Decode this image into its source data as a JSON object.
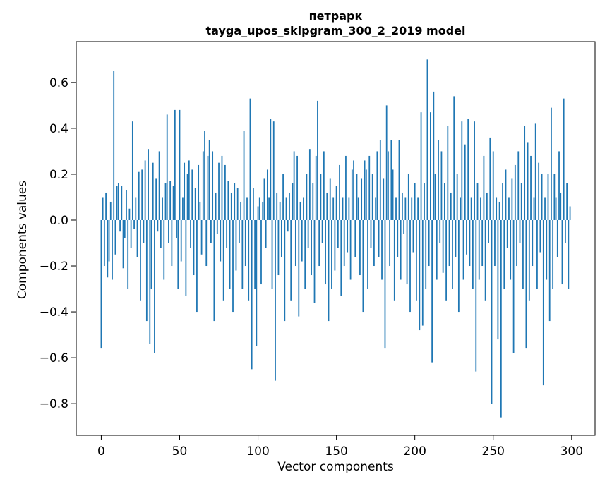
{
  "figure": {
    "title": "петрарк",
    "subtitle": "tayga_upos_skipgram_300_2_2019 model"
  },
  "chart_data": {
    "type": "bar",
    "title": "петрарк",
    "subtitle": "tayga_upos_skipgram_300_2_2019 model",
    "xlabel": "Vector components",
    "ylabel": "Components values",
    "legend": "none",
    "grid": false,
    "xlim": [
      -15.95,
      314.95
    ],
    "ylim": [
      -0.938,
      0.778
    ],
    "xticks": [
      0,
      50,
      100,
      150,
      200,
      250,
      300
    ],
    "yticks": [
      -0.8,
      -0.6,
      -0.4,
      -0.2,
      0.0,
      0.2,
      0.4,
      0.6
    ],
    "bar_color": "#1f77b4",
    "bar_width_data_units": 0.8,
    "x_start": 0,
    "values": [
      -0.56,
      0.1,
      -0.2,
      0.12,
      -0.25,
      -0.18,
      0.08,
      -0.26,
      0.65,
      -0.15,
      0.15,
      0.16,
      -0.05,
      0.15,
      -0.21,
      -0.08,
      0.13,
      -0.3,
      0.05,
      -0.12,
      0.43,
      -0.04,
      0.1,
      -0.16,
      0.21,
      -0.35,
      0.22,
      -0.1,
      0.26,
      -0.44,
      0.31,
      -0.54,
      -0.3,
      0.25,
      -0.58,
      0.18,
      -0.05,
      0.3,
      -0.12,
      0.1,
      -0.26,
      0.16,
      0.46,
      -0.1,
      0.17,
      -0.2,
      0.15,
      0.48,
      -0.08,
      -0.3,
      0.48,
      -0.18,
      0.1,
      0.25,
      -0.33,
      0.2,
      0.26,
      -0.12,
      0.22,
      -0.24,
      0.14,
      -0.4,
      0.24,
      0.08,
      -0.15,
      0.3,
      0.39,
      -0.2,
      0.28,
      0.35,
      -0.1,
      0.3,
      -0.44,
      0.12,
      -0.06,
      0.25,
      -0.18,
      0.28,
      -0.35,
      0.24,
      -0.12,
      0.17,
      -0.3,
      0.12,
      -0.4,
      0.16,
      -0.22,
      0.14,
      -0.1,
      0.08,
      -0.3,
      0.39,
      -0.2,
      0.1,
      -0.35,
      0.53,
      -0.65,
      0.14,
      -0.3,
      -0.55,
      0.06,
      0.1,
      -0.28,
      0.08,
      0.18,
      -0.12,
      0.22,
      0.1,
      0.44,
      -0.3,
      0.43,
      -0.7,
      0.12,
      -0.24,
      0.08,
      -0.16,
      0.2,
      -0.44,
      0.1,
      -0.05,
      0.12,
      -0.35,
      0.16,
      0.3,
      -0.2,
      0.28,
      -0.42,
      0.08,
      -0.18,
      0.1,
      -0.3,
      0.2,
      -0.12,
      0.31,
      -0.24,
      0.16,
      -0.36,
      0.28,
      0.52,
      -0.2,
      0.2,
      -0.1,
      0.3,
      -0.28,
      0.12,
      -0.44,
      0.18,
      -0.3,
      0.1,
      -0.22,
      0.15,
      -0.12,
      0.24,
      -0.33,
      0.1,
      -0.2,
      0.28,
      -0.14,
      0.1,
      -0.26,
      0.22,
      0.26,
      -0.16,
      0.2,
      0.1,
      -0.24,
      0.18,
      -0.4,
      0.26,
      0.22,
      -0.3,
      0.28,
      -0.12,
      0.2,
      -0.2,
      0.1,
      0.3,
      -0.16,
      0.35,
      -0.26,
      0.18,
      -0.56,
      0.5,
      0.3,
      -0.2,
      0.35,
      0.22,
      -0.35,
      0.1,
      -0.16,
      0.35,
      -0.26,
      0.12,
      -0.06,
      0.1,
      -0.28,
      0.2,
      -0.4,
      0.1,
      -0.14,
      0.16,
      -0.35,
      0.1,
      -0.48,
      0.47,
      -0.46,
      0.16,
      -0.3,
      0.7,
      -0.2,
      0.47,
      -0.62,
      0.56,
      0.2,
      -0.26,
      0.35,
      -0.1,
      0.3,
      -0.23,
      0.16,
      -0.35,
      0.41,
      -0.2,
      0.12,
      -0.3,
      0.54,
      -0.16,
      0.2,
      -0.4,
      0.1,
      0.43,
      -0.26,
      0.33,
      -0.15,
      0.44,
      -0.2,
      0.1,
      -0.3,
      0.43,
      -0.66,
      0.16,
      -0.26,
      0.1,
      -0.2,
      0.28,
      -0.35,
      0.12,
      -0.1,
      0.36,
      -0.8,
      0.3,
      -0.2,
      0.1,
      -0.52,
      0.08,
      -0.86,
      0.16,
      -0.3,
      0.22,
      -0.12,
      0.1,
      -0.26,
      0.18,
      -0.58,
      0.24,
      -0.2,
      0.3,
      -0.1,
      0.16,
      -0.3,
      0.41,
      -0.56,
      0.34,
      -0.35,
      0.28,
      -0.2,
      0.1,
      0.42,
      -0.3,
      0.25,
      -0.14,
      0.2,
      -0.72,
      0.1,
      -0.26,
      0.2,
      -0.44,
      0.49,
      -0.3,
      0.2,
      0.1,
      -0.16,
      0.3,
      0.12,
      -0.28,
      0.53,
      -0.1,
      0.16,
      -0.3,
      0.06
    ]
  }
}
